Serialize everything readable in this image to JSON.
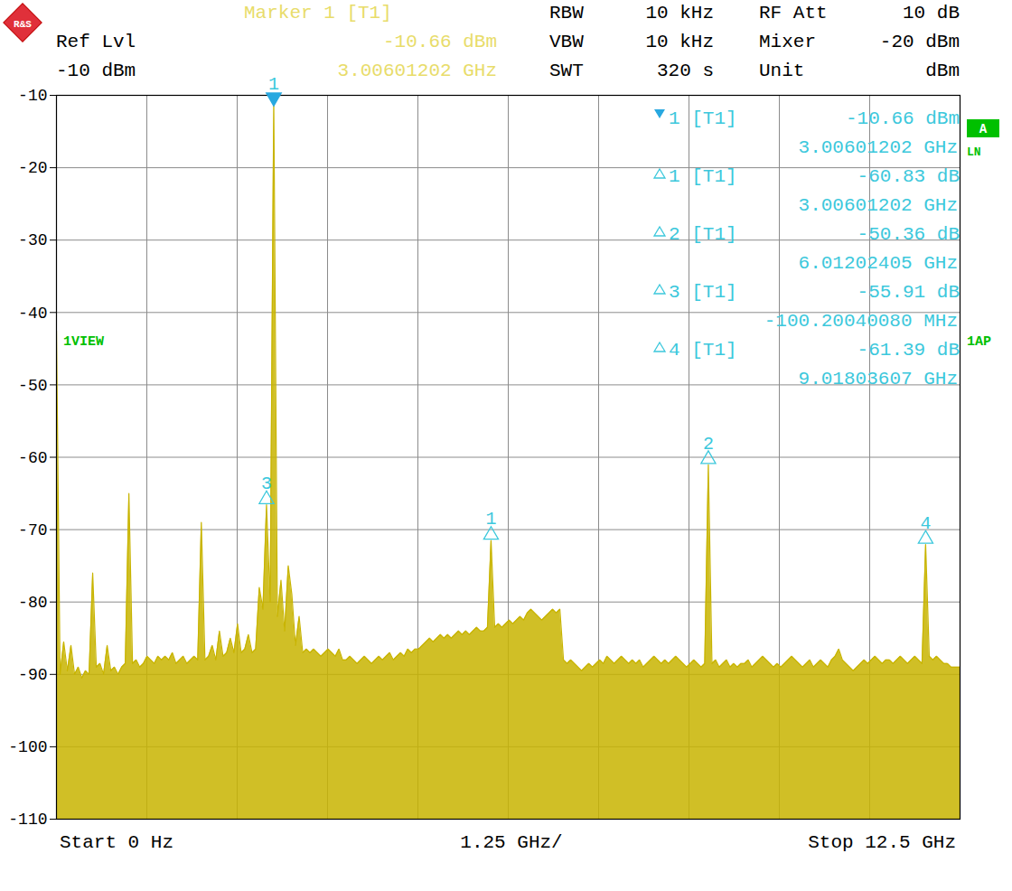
{
  "chart_data": {
    "type": "area",
    "color": "#c8b400",
    "grid": true,
    "tick_labels": "y",
    "xlim": [
      0,
      12.5
    ],
    "xticks": [
      0,
      1.25,
      2.5,
      3.75,
      5,
      6.25,
      7.5,
      8.75,
      10,
      11.25,
      12.5
    ],
    "ylim": [
      -110,
      -10
    ],
    "yticks": [
      -110,
      -100,
      -90,
      -80,
      -70,
      -60,
      -50,
      -40,
      -30,
      -20,
      -10
    ],
    "x": [
      0,
      0.0501,
      0.1002,
      0.1503,
      0.2004,
      0.2505,
      0.3006,
      0.3507,
      0.4008,
      0.4509,
      0.501,
      0.5511,
      0.6012,
      0.6513,
      0.7014,
      0.7515,
      0.8016,
      0.8517,
      0.9018,
      0.9519,
      1.002,
      1.0521,
      1.1022,
      1.1523,
      1.2024,
      1.2525,
      1.3026,
      1.3527,
      1.4028,
      1.4529,
      1.503,
      1.5531,
      1.6032,
      1.6533,
      1.7034,
      1.7535,
      1.8036,
      1.8537,
      1.9038,
      1.9539,
      2.004,
      2.0541,
      2.1042,
      2.1543,
      2.2044,
      2.2545,
      2.3046,
      2.3547,
      2.4048,
      2.4549,
      2.505,
      2.5551,
      2.6052,
      2.6553,
      2.7054,
      2.7555,
      2.8056,
      2.8557,
      2.9058,
      2.9559,
      3.006,
      3.0561,
      3.1062,
      3.1563,
      3.2064,
      3.2565,
      3.3066,
      3.3567,
      3.4068,
      3.4569,
      3.507,
      3.5571,
      3.6072,
      3.6573,
      3.7074,
      3.7575,
      3.8076,
      3.8577,
      3.9078,
      3.9579,
      4.008,
      4.0581,
      4.1082,
      4.1583,
      4.2084,
      4.2585,
      4.3086,
      4.3587,
      4.4088,
      4.4589,
      4.509,
      4.5591,
      4.6092,
      4.6593,
      4.7094,
      4.7595,
      4.8096,
      4.8597,
      4.9098,
      4.9599,
      5.01,
      5.0601,
      5.1102,
      5.1603,
      5.2104,
      5.2605,
      5.3106,
      5.3607,
      5.4108,
      5.4609,
      5.511,
      5.5611,
      5.6112,
      5.6613,
      5.7114,
      5.7615,
      5.8116,
      5.8617,
      5.9118,
      5.9619,
      6.012,
      6.0621,
      6.1122,
      6.1623,
      6.2124,
      6.2625,
      6.3126,
      6.3627,
      6.4128,
      6.4629,
      6.513,
      6.5631,
      6.6132,
      6.6633,
      6.7134,
      6.7635,
      6.8136,
      6.8637,
      6.9138,
      6.9639,
      7.014,
      7.0641,
      7.1142,
      7.1643,
      7.2144,
      7.2645,
      7.3146,
      7.3647,
      7.4148,
      7.4649,
      7.515,
      7.5651,
      7.6152,
      7.6653,
      7.7154,
      7.7655,
      7.8156,
      7.8657,
      7.9158,
      7.9659,
      8.016,
      8.0661,
      8.1162,
      8.1663,
      8.2164,
      8.2665,
      8.3166,
      8.3667,
      8.4168,
      8.4669,
      8.517,
      8.5671,
      8.6172,
      8.6673,
      8.7174,
      8.7675,
      8.8176,
      8.8677,
      8.9178,
      8.9679,
      9.018,
      9.0681,
      9.1182,
      9.1683,
      9.2184,
      9.2685,
      9.3186,
      9.3687,
      9.4188,
      9.4689,
      9.519,
      9.5691,
      9.6192,
      9.6693,
      9.7194,
      9.7695,
      9.8196,
      9.8697,
      9.9198,
      9.9699,
      10.02,
      10.0701,
      10.1202,
      10.1703,
      10.2204,
      10.2705,
      10.3206,
      10.3707,
      10.4208,
      10.4709,
      10.521,
      10.5711,
      10.6212,
      10.6713,
      10.7214,
      10.7715,
      10.8216,
      10.8717,
      10.9218,
      10.9719,
      11.022,
      11.0721,
      11.1222,
      11.1723,
      11.2224,
      11.2725,
      11.3226,
      11.3727,
      11.4228,
      11.4729,
      11.523,
      11.5731,
      11.6232,
      11.6733,
      11.7234,
      11.7735,
      11.8236,
      11.8737,
      11.9238,
      11.9739,
      12.024,
      12.0741,
      12.1242,
      12.1743,
      12.2244,
      12.2745,
      12.3246,
      12.3747,
      12.4248,
      12.4749,
      12.5
    ],
    "values": [
      -42.5,
      -90,
      -85.5,
      -89.5,
      -86,
      -90,
      -89,
      -90.5,
      -89.5,
      -90,
      -76,
      -89,
      -88.5,
      -90,
      -86,
      -89.5,
      -89,
      -90,
      -89,
      -88.5,
      -65,
      -88.5,
      -88,
      -89,
      -88.5,
      -87.5,
      -88,
      -88.5,
      -87.5,
      -88,
      -87.5,
      -88,
      -87,
      -88.5,
      -88,
      -87.5,
      -88.5,
      -88,
      -87.5,
      -88,
      -69,
      -88,
      -87.5,
      -86,
      -88,
      -84,
      -87.5,
      -87,
      -85,
      -87,
      -83,
      -87,
      -86.5,
      -84.5,
      -87,
      -86.5,
      -78,
      -81,
      -66.57,
      -80,
      -10.66,
      -82,
      -77,
      -84,
      -75,
      -79,
      -86,
      -82,
      -87,
      -86.5,
      -87,
      -86.5,
      -87,
      -87.5,
      -87,
      -86.5,
      -87,
      -87.5,
      -86.5,
      -88,
      -88,
      -87.5,
      -88,
      -88.5,
      -88,
      -87.5,
      -88,
      -88.5,
      -88,
      -87.5,
      -88,
      -87.5,
      -87,
      -88,
      -87.5,
      -87,
      -87.5,
      -86.5,
      -87,
      -86.5,
      -86.5,
      -86,
      -85.5,
      -85,
      -85.5,
      -85,
      -84.5,
      -85,
      -84.5,
      -85,
      -84.5,
      -84,
      -84.5,
      -84,
      -84.5,
      -84,
      -83.5,
      -84,
      -84,
      -83.5,
      -71.49,
      -83.5,
      -83,
      -83.5,
      -83,
      -82.5,
      -83,
      -82.5,
      -82,
      -82.5,
      -81.5,
      -81,
      -81.5,
      -82,
      -82.5,
      -82,
      -81.5,
      -81,
      -81.5,
      -81,
      -88,
      -88.5,
      -88,
      -88.5,
      -89,
      -89.5,
      -89,
      -88.5,
      -89,
      -88.5,
      -88,
      -88.5,
      -87.5,
      -88,
      -88.5,
      -88,
      -87.5,
      -88,
      -88.5,
      -88,
      -88.5,
      -88,
      -89,
      -88.5,
      -88,
      -87.5,
      -88,
      -88.5,
      -88,
      -88.5,
      -88,
      -87.5,
      -88,
      -88.5,
      -89,
      -88.5,
      -88,
      -88.5,
      -89,
      -88.5,
      -61.02,
      -88.5,
      -88,
      -89,
      -88.5,
      -88,
      -89,
      -88.5,
      -89,
      -88.5,
      -88.5,
      -88,
      -89,
      -88.5,
      -88,
      -87.5,
      -88,
      -88.5,
      -89,
      -88.5,
      -89,
      -88.5,
      -88,
      -87.5,
      -88,
      -88.5,
      -89,
      -88.5,
      -88,
      -89,
      -88.5,
      -88,
      -88.5,
      -89,
      -88,
      -87.5,
      -86.5,
      -88,
      -88.5,
      -89,
      -89.5,
      -89,
      -88.5,
      -88,
      -88.5,
      -88,
      -87.5,
      -88,
      -88.5,
      -88,
      -88,
      -88.5,
      -88,
      -87.5,
      -88,
      -88.5,
      -88,
      -87.5,
      -88,
      -88.5,
      -72.05,
      -87.5,
      -88,
      -87.5,
      -88,
      -88.5,
      -88.5,
      -89,
      -89,
      -89,
      -89
    ],
    "markers": [
      {
        "label": "1",
        "kind": "normal",
        "x": 3.006,
        "y": -10.66
      },
      {
        "label": "1",
        "kind": "delta",
        "x": 6.012,
        "y": -71.49
      },
      {
        "label": "2",
        "kind": "delta",
        "x": 9.018,
        "y": -61.02
      },
      {
        "label": "3",
        "kind": "delta",
        "x": 2.906,
        "y": -66.57
      },
      {
        "label": "4",
        "kind": "delta",
        "x": 12.024,
        "y": -72.05
      }
    ],
    "marker_table": [
      {
        "kind": "normal",
        "name": "1 [T1]",
        "value": "-10.66 dBm",
        "frequency": "3.00601202 GHz"
      },
      {
        "kind": "delta",
        "name": "1 [T1]",
        "value": "-60.83 dB",
        "frequency": "3.00601202 GHz"
      },
      {
        "kind": "delta",
        "name": "2 [T1]",
        "value": "-50.36 dB",
        "frequency": "6.01202405 GHz"
      },
      {
        "kind": "delta",
        "name": "3 [T1]",
        "value": "-55.91 dB",
        "frequency": "-100.20040080 MHz"
      },
      {
        "kind": "delta",
        "name": "4 [T1]",
        "value": "-61.39 dB",
        "frequency": "9.01803607 GHz"
      }
    ],
    "header": {
      "logo": "R&S",
      "marker": {
        "label": "Marker 1 [T1]",
        "value": "-10.66 dBm",
        "frequency": "3.00601202 GHz"
      },
      "ref_level": {
        "label": "Ref Lvl",
        "value": "-10 dBm"
      },
      "settings": [
        {
          "label": "RBW",
          "value": "10 kHz"
        },
        {
          "label": "VBW",
          "value": "10 kHz"
        },
        {
          "label": "SWT",
          "value": "320 s"
        },
        {
          "label": "RF Att",
          "value": "10 dB"
        },
        {
          "label": "Mixer",
          "value": "-20 dBm"
        },
        {
          "label": "Unit",
          "value": "dBm"
        }
      ]
    },
    "side_labels": {
      "trace": "1VIEW",
      "detector": "1AP",
      "status": [
        "A",
        "LN"
      ]
    },
    "footer": {
      "start": "Start 0 Hz",
      "span": "1.25 GHz/",
      "stop": "Stop 12.5 GHz"
    }
  }
}
